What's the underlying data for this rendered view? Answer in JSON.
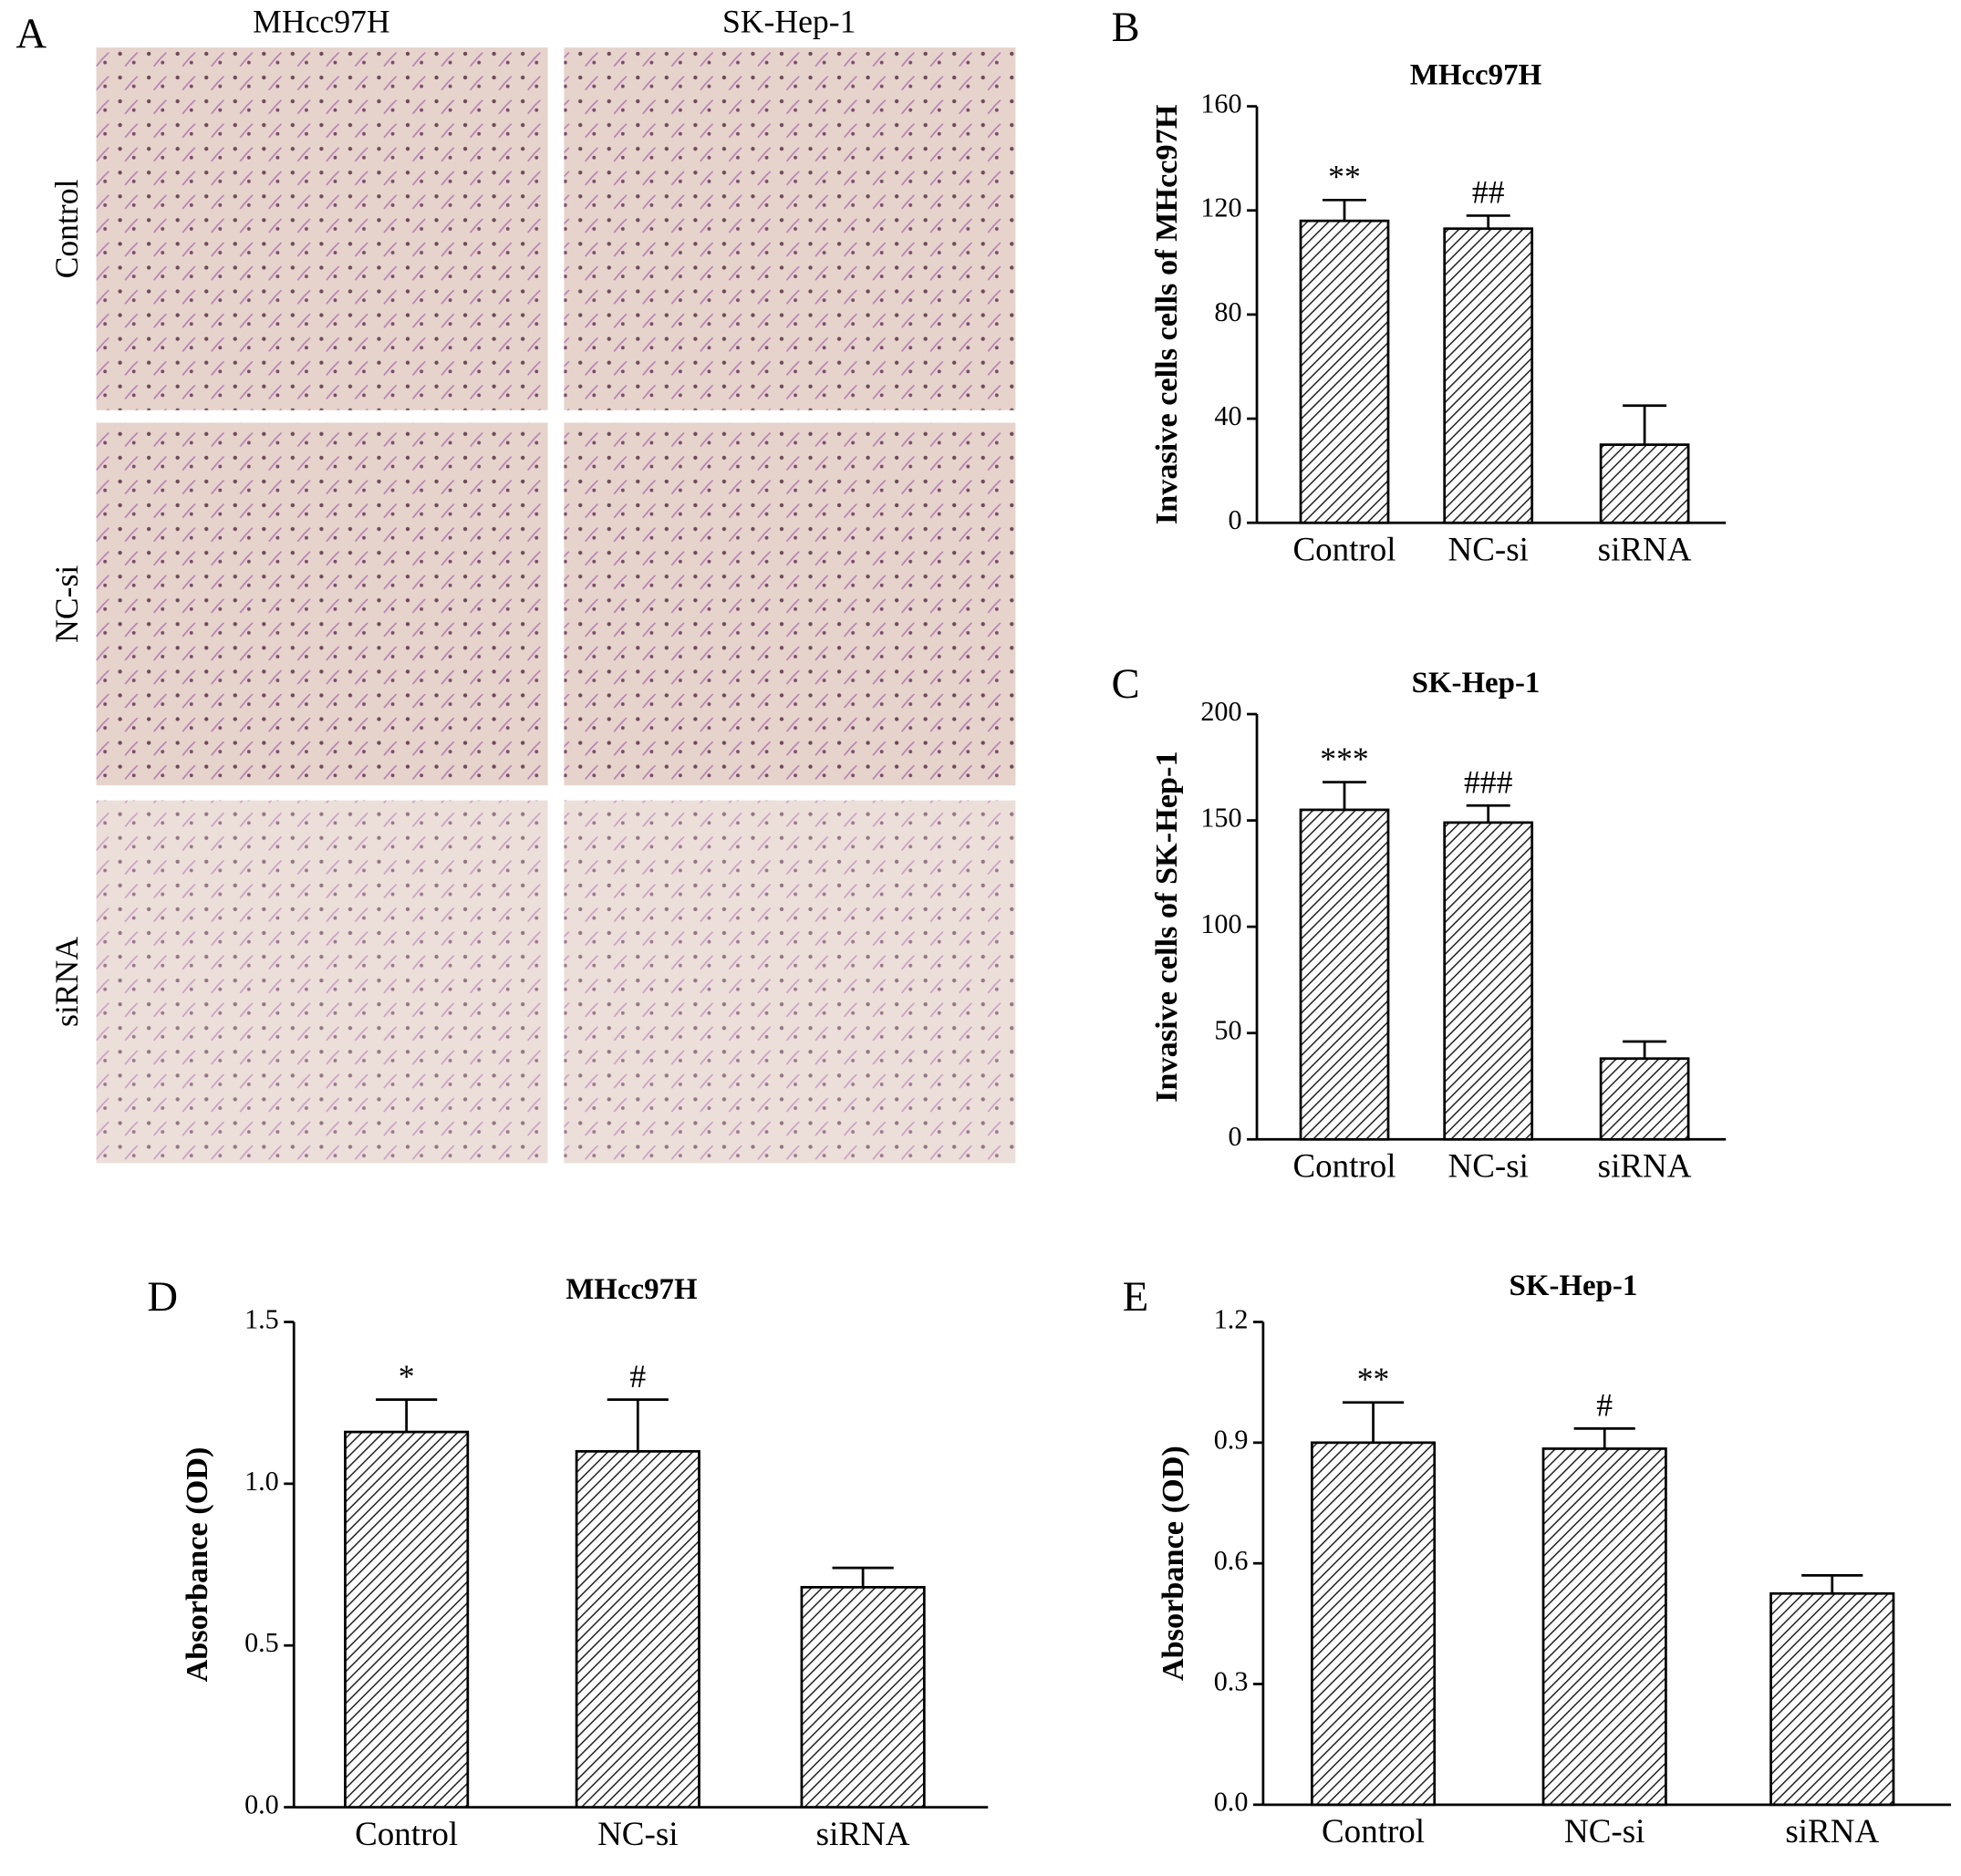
{
  "panel_a": {
    "letter": "A",
    "columns": [
      "MHcc97H",
      "SK-Hep-1"
    ],
    "rows": [
      "Control",
      "NC-si",
      "siRNA"
    ]
  },
  "chart_data": [
    {
      "type": "bar",
      "letter": "B",
      "title": "MHcc97H",
      "y_label": "Invasive cells cells of MHcc97H",
      "categories": [
        "Control",
        "NC-si",
        "siRNA"
      ],
      "values": [
        116,
        113,
        30
      ],
      "errors": [
        8,
        5,
        15
      ],
      "annotations": [
        "**",
        "##",
        null
      ],
      "ylim": [
        0,
        160
      ],
      "yticks": [
        0,
        40,
        80,
        120,
        160
      ]
    },
    {
      "type": "bar",
      "letter": "C",
      "title": "SK-Hep-1",
      "y_label": "Invasive cells of SK-Hep-1",
      "categories": [
        "Control",
        "NC-si",
        "siRNA"
      ],
      "values": [
        155,
        149,
        38
      ],
      "errors": [
        13,
        8,
        8
      ],
      "annotations": [
        "***",
        "###",
        null
      ],
      "ylim": [
        0,
        200
      ],
      "yticks": [
        0,
        50,
        100,
        150,
        200
      ]
    },
    {
      "type": "bar",
      "letter": "D",
      "title": "MHcc97H",
      "y_label": "Absorbance (OD)",
      "categories": [
        "Control",
        "NC-si",
        "siRNA"
      ],
      "values": [
        1.16,
        1.1,
        0.68
      ],
      "errors": [
        0.1,
        0.16,
        0.06
      ],
      "annotations": [
        "*",
        "#",
        null
      ],
      "ylim": [
        0,
        1.5
      ],
      "yticks": [
        {
          "value": 0,
          "label": "0.0"
        },
        {
          "value": 0.5,
          "label": "0.5"
        },
        {
          "value": 1,
          "label": "1.0"
        },
        {
          "value": 1.5,
          "label": "1.5"
        }
      ]
    },
    {
      "type": "bar",
      "letter": "E",
      "title": "SK-Hep-1",
      "y_label": "Absorbance (OD)",
      "categories": [
        "Control",
        "NC-si",
        "siRNA"
      ],
      "values": [
        0.9,
        0.885,
        0.525
      ],
      "errors": [
        0.1,
        0.05,
        0.045
      ],
      "annotations": [
        "**",
        "#",
        null
      ],
      "ylim": [
        0,
        1.2
      ],
      "yticks": [
        {
          "value": 0,
          "label": "0.0"
        },
        {
          "value": 0.3,
          "label": "0.3"
        },
        {
          "value": 0.6,
          "label": "0.6"
        },
        {
          "value": 0.9,
          "label": "0.9"
        },
        {
          "value": 1.2,
          "label": "1.2"
        }
      ]
    }
  ]
}
